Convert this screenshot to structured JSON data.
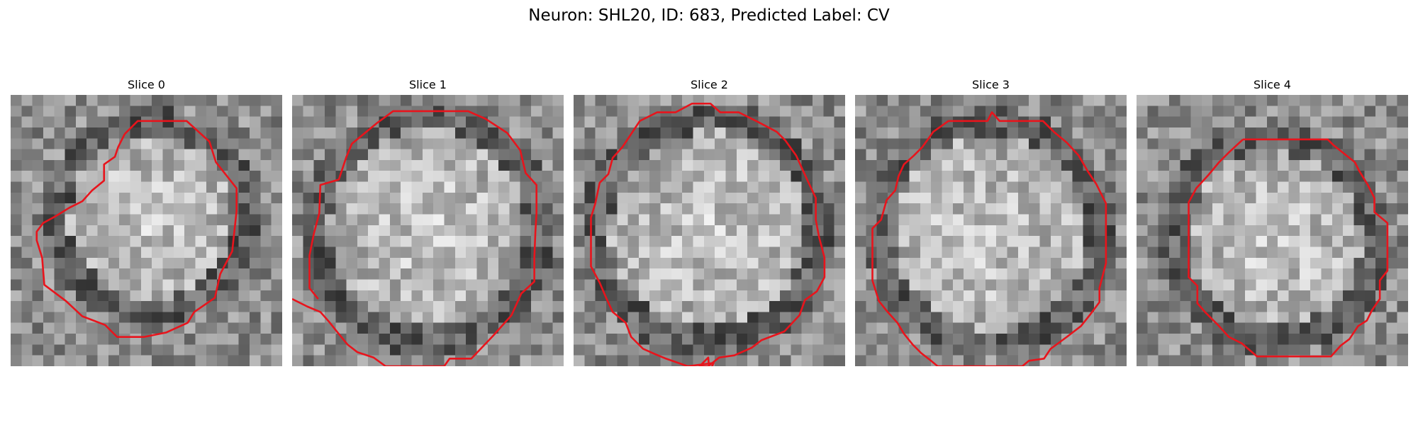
{
  "figure": {
    "title": "Neuron: SHL20, ID: 683, Predicted Label: CV",
    "contour_color": "#e8141c",
    "colormap": "gray",
    "grid_size": 25,
    "slices": [
      {
        "title": "Slice 0",
        "blob": {
          "cx": 12.9,
          "cy": 11.2,
          "r": 8.6,
          "ring": 1.8
        },
        "contour": [
          [
            10.5,
            3.6
          ],
          [
            11.7,
            2.4
          ],
          [
            16.2,
            2.4
          ],
          [
            18.3,
            4.3
          ],
          [
            18.9,
            6.2
          ],
          [
            20.8,
            8.6
          ],
          [
            20.8,
            10.7
          ],
          [
            20.4,
            14.4
          ],
          [
            19.3,
            16.5
          ],
          [
            18.8,
            18.7
          ],
          [
            16.9,
            20.0
          ],
          [
            16.3,
            21.0
          ],
          [
            14.3,
            21.9
          ],
          [
            12.3,
            22.3
          ],
          [
            9.8,
            22.3
          ],
          [
            8.7,
            21.2
          ],
          [
            6.6,
            20.4
          ],
          [
            5.1,
            19.0
          ],
          [
            3.1,
            17.5
          ],
          [
            2.9,
            15.0
          ],
          [
            2.4,
            13.4
          ],
          [
            2.4,
            12.6
          ],
          [
            3.0,
            11.8
          ],
          [
            4.1,
            11.2
          ],
          [
            5.4,
            10.4
          ],
          [
            6.6,
            9.8
          ],
          [
            7.5,
            8.8
          ],
          [
            8.6,
            7.9
          ],
          [
            8.6,
            6.4
          ],
          [
            9.6,
            5.7
          ],
          [
            9.9,
            4.8
          ],
          [
            10.5,
            3.6
          ]
        ]
      },
      {
        "title": "Slice 1",
        "blob": {
          "cx": 12.5,
          "cy": 12.3,
          "r": 10.2,
          "ring": 1.9
        },
        "contour": [
          [
            0.0,
            18.8
          ],
          [
            1.4,
            19.5
          ],
          [
            2.6,
            20.0
          ],
          [
            3.4,
            20.9
          ],
          [
            4.2,
            21.9
          ],
          [
            5.1,
            23.0
          ],
          [
            6.0,
            23.7
          ],
          [
            7.5,
            24.2
          ],
          [
            8.6,
            25.0
          ],
          [
            14.0,
            25.0
          ],
          [
            14.5,
            24.3
          ],
          [
            16.5,
            24.3
          ],
          [
            18.5,
            22.2
          ],
          [
            20.2,
            20.3
          ],
          [
            21.1,
            18.3
          ],
          [
            22.3,
            17.2
          ],
          [
            22.3,
            15.0
          ],
          [
            22.4,
            12.6
          ],
          [
            22.5,
            10.9
          ],
          [
            22.5,
            8.3
          ],
          [
            21.5,
            7.2
          ],
          [
            21.0,
            5.1
          ],
          [
            19.8,
            3.5
          ],
          [
            17.8,
            2.2
          ],
          [
            16.2,
            1.5
          ],
          [
            9.3,
            1.5
          ],
          [
            7.8,
            2.6
          ],
          [
            5.5,
            4.5
          ],
          [
            5.0,
            5.7
          ],
          [
            4.3,
            7.8
          ],
          [
            2.6,
            8.3
          ],
          [
            2.5,
            10.9
          ],
          [
            2.0,
            12.8
          ],
          [
            1.6,
            14.8
          ],
          [
            1.6,
            17.8
          ],
          [
            2.4,
            18.8
          ]
        ]
      },
      {
        "title": "Slice 2",
        "blob": {
          "cx": 12.4,
          "cy": 12.4,
          "r": 10.2,
          "ring": 1.9
        },
        "contour": [
          [
            6.1,
            2.4
          ],
          [
            7.7,
            1.6
          ],
          [
            9.4,
            1.6
          ],
          [
            10.9,
            0.8
          ],
          [
            12.6,
            0.8
          ],
          [
            13.5,
            1.6
          ],
          [
            15.2,
            1.6
          ],
          [
            17.0,
            2.5
          ],
          [
            18.7,
            3.4
          ],
          [
            19.5,
            4.2
          ],
          [
            20.5,
            5.6
          ],
          [
            21.5,
            7.8
          ],
          [
            22.3,
            9.5
          ],
          [
            22.3,
            11.5
          ],
          [
            22.6,
            13.1
          ],
          [
            23.1,
            15.0
          ],
          [
            23.1,
            16.8
          ],
          [
            22.4,
            18.1
          ],
          [
            21.3,
            18.9
          ],
          [
            20.8,
            20.3
          ],
          [
            19.4,
            21.8
          ],
          [
            17.3,
            22.6
          ],
          [
            16.4,
            23.3
          ],
          [
            14.8,
            24.0
          ],
          [
            13.4,
            24.2
          ],
          [
            12.4,
            25.0
          ],
          [
            11.6,
            25.0
          ],
          [
            12.4,
            24.2
          ],
          [
            12.5,
            25.5
          ],
          [
            12.9,
            24.7
          ],
          [
            10.5,
            25.0
          ],
          [
            8.5,
            24.3
          ],
          [
            7.3,
            23.8
          ],
          [
            6.4,
            23.4
          ],
          [
            5.3,
            22.3
          ],
          [
            4.8,
            21.0
          ],
          [
            3.6,
            20.0
          ],
          [
            3.0,
            18.7
          ],
          [
            2.4,
            17.3
          ],
          [
            1.6,
            15.8
          ],
          [
            1.6,
            11.3
          ],
          [
            2.0,
            10.0
          ],
          [
            2.4,
            8.1
          ],
          [
            3.2,
            7.3
          ],
          [
            3.6,
            5.8
          ],
          [
            4.5,
            4.8
          ],
          [
            5.3,
            3.6
          ],
          [
            6.1,
            2.4
          ]
        ]
      },
      {
        "title": "Slice 3",
        "blob": {
          "cx": 12.5,
          "cy": 12.8,
          "r": 10.0,
          "ring": 1.9
        },
        "contour": [
          [
            6.2,
            4.8
          ],
          [
            7.2,
            3.4
          ],
          [
            8.6,
            2.4
          ],
          [
            12.2,
            2.4
          ],
          [
            12.6,
            1.6
          ],
          [
            13.3,
            2.4
          ],
          [
            17.3,
            2.4
          ],
          [
            18.3,
            3.4
          ],
          [
            19.5,
            4.4
          ],
          [
            20.6,
            5.6
          ],
          [
            21.4,
            7.0
          ],
          [
            22.2,
            8.2
          ],
          [
            23.1,
            10.0
          ],
          [
            23.1,
            15.5
          ],
          [
            22.5,
            17.8
          ],
          [
            22.5,
            19.1
          ],
          [
            21.6,
            20.3
          ],
          [
            20.8,
            21.3
          ],
          [
            19.5,
            22.3
          ],
          [
            18.0,
            23.4
          ],
          [
            17.4,
            24.3
          ],
          [
            16.0,
            24.5
          ],
          [
            15.4,
            25.0
          ],
          [
            7.6,
            25.0
          ],
          [
            7.0,
            24.5
          ],
          [
            6.1,
            23.8
          ],
          [
            5.3,
            23.0
          ],
          [
            4.5,
            22.0
          ],
          [
            3.9,
            21.0
          ],
          [
            3.0,
            20.0
          ],
          [
            2.2,
            19.0
          ],
          [
            1.6,
            17.1
          ],
          [
            1.6,
            12.3
          ],
          [
            2.4,
            11.5
          ],
          [
            2.9,
            9.7
          ],
          [
            3.7,
            8.8
          ],
          [
            4.0,
            7.5
          ],
          [
            4.5,
            6.4
          ],
          [
            5.4,
            5.6
          ],
          [
            6.2,
            4.8
          ]
        ]
      },
      {
        "title": "Slice 4",
        "blob": {
          "cx": 12.7,
          "cy": 13.3,
          "r": 9.2,
          "ring": 2.0
        },
        "contour": [
          [
            9.8,
            4.1
          ],
          [
            17.6,
            4.1
          ],
          [
            18.1,
            4.6
          ],
          [
            19.1,
            5.4
          ],
          [
            20.1,
            6.2
          ],
          [
            20.5,
            7.0
          ],
          [
            21.3,
            8.3
          ],
          [
            21.9,
            9.5
          ],
          [
            21.9,
            10.8
          ],
          [
            23.1,
            11.8
          ],
          [
            23.1,
            16.2
          ],
          [
            22.4,
            17.1
          ],
          [
            22.4,
            18.8
          ],
          [
            21.7,
            19.8
          ],
          [
            21.2,
            20.8
          ],
          [
            20.4,
            21.3
          ],
          [
            19.6,
            22.5
          ],
          [
            18.8,
            23.1
          ],
          [
            17.9,
            24.1
          ],
          [
            11.1,
            24.1
          ],
          [
            9.7,
            22.9
          ],
          [
            8.5,
            22.3
          ],
          [
            7.5,
            21.2
          ],
          [
            6.3,
            20.0
          ],
          [
            5.6,
            19.2
          ],
          [
            5.6,
            17.6
          ],
          [
            4.8,
            16.8
          ],
          [
            4.8,
            9.9
          ],
          [
            5.5,
            8.6
          ],
          [
            6.6,
            7.4
          ],
          [
            7.6,
            6.2
          ],
          [
            8.5,
            5.3
          ],
          [
            9.8,
            4.1
          ]
        ]
      }
    ]
  }
}
